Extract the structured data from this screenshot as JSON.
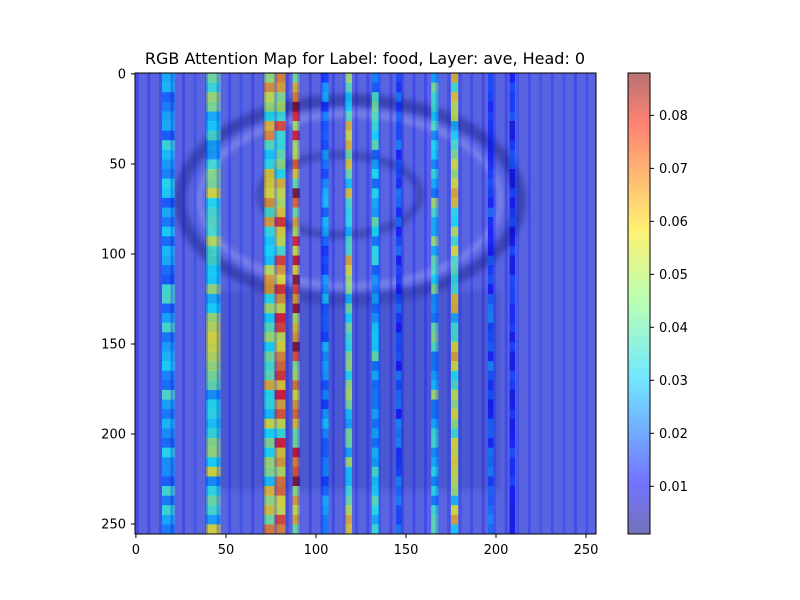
{
  "chart_data": {
    "type": "heatmap",
    "title": "RGB Attention Map for Label: food, Layer: ave, Head: 0",
    "xlim": [
      0,
      255
    ],
    "ylim": [
      255,
      0
    ],
    "x_ticks": [
      "0",
      "50",
      "100",
      "150",
      "200",
      "250"
    ],
    "y_ticks": [
      "0",
      "50",
      "100",
      "150",
      "200",
      "250"
    ],
    "colorbar": {
      "range": [
        0.001,
        0.088
      ],
      "ticks": [
        "0.01",
        "0.02",
        "0.03",
        "0.04",
        "0.05",
        "0.06",
        "0.07",
        "0.08"
      ],
      "colormap": "jet",
      "alpha": 0.55
    },
    "column_bands": [
      {
        "x": 18,
        "width": 7,
        "value": 0.032
      },
      {
        "x": 43,
        "width": 8,
        "value": 0.045
      },
      {
        "x": 74,
        "width": 6,
        "value": 0.055
      },
      {
        "x": 80,
        "width": 6,
        "value": 0.062
      },
      {
        "x": 89,
        "width": 4,
        "value": 0.075
      },
      {
        "x": 105,
        "width": 4,
        "value": 0.025
      },
      {
        "x": 118,
        "width": 4,
        "value": 0.05
      },
      {
        "x": 133,
        "width": 4,
        "value": 0.035
      },
      {
        "x": 146,
        "width": 3,
        "value": 0.02
      },
      {
        "x": 166,
        "width": 4,
        "value": 0.04
      },
      {
        "x": 177,
        "width": 4,
        "value": 0.05
      },
      {
        "x": 197,
        "width": 3,
        "value": 0.02
      },
      {
        "x": 209,
        "width": 3,
        "value": 0.015
      }
    ],
    "background_value": 0.008,
    "underlying_image": "dish"
  }
}
